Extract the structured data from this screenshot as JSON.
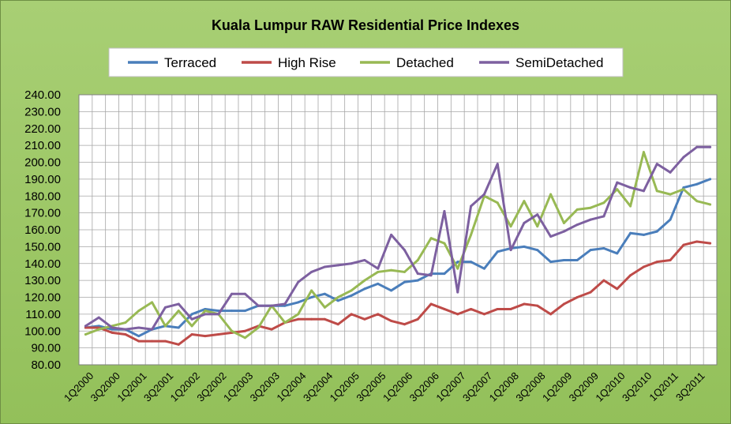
{
  "chart_data": {
    "type": "line",
    "title": "Kuala Lumpur RAW Residential Price Indexes",
    "xlabel": "",
    "ylabel": "",
    "ylim": [
      80,
      240
    ],
    "y_ticks": [
      "80.00",
      "90.00",
      "100.00",
      "110.00",
      "120.00",
      "130.00",
      "140.00",
      "150.00",
      "160.00",
      "170.00",
      "180.00",
      "190.00",
      "200.00",
      "210.00",
      "220.00",
      "230.00",
      "240.00"
    ],
    "x": [
      "1Q2000",
      "2Q2000",
      "3Q2000",
      "4Q2000",
      "1Q2001",
      "2Q2001",
      "3Q2001",
      "4Q2001",
      "1Q2002",
      "2Q2002",
      "3Q2002",
      "4Q2002",
      "1Q2003",
      "2Q2003",
      "3Q2003",
      "4Q2003",
      "1Q2004",
      "2Q2004",
      "3Q2004",
      "4Q2004",
      "1Q2005",
      "2Q2005",
      "3Q2005",
      "4Q2005",
      "1Q2006",
      "2Q2006",
      "3Q2006",
      "4Q2006",
      "1Q2007",
      "2Q2007",
      "3Q2007",
      "4Q2007",
      "1Q2008",
      "2Q2008",
      "3Q2008",
      "4Q2008",
      "1Q2009",
      "2Q2009",
      "3Q2009",
      "4Q2009",
      "1Q2010",
      "2Q2010",
      "3Q2010",
      "4Q2010",
      "1Q2011",
      "2Q2011",
      "3Q2011",
      "4Q2011"
    ],
    "x_tick_labels": [
      "1Q2000",
      "3Q2000",
      "1Q2001",
      "3Q2001",
      "1Q2002",
      "3Q2002",
      "1Q2003",
      "3Q2003",
      "1Q2004",
      "3Q2004",
      "1Q2005",
      "3Q2005",
      "1Q2006",
      "3Q2006",
      "1Q2007",
      "3Q2007",
      "1Q2008",
      "3Q2008",
      "1Q2009",
      "3Q2009",
      "1Q2010",
      "3Q2010",
      "1Q2011",
      "3Q2011"
    ],
    "legend_position": "top",
    "grid": true,
    "series": [
      {
        "name": "Terraced",
        "color": "#4A7EBB",
        "values": [
          102,
          103,
          101,
          101,
          97,
          101,
          103,
          102,
          110,
          113,
          112,
          112,
          112,
          115,
          115,
          115,
          117,
          120,
          122,
          118,
          121,
          125,
          128,
          124,
          129,
          130,
          134,
          134,
          141,
          141,
          137,
          147,
          149,
          150,
          148,
          141,
          142,
          142,
          148,
          149,
          146,
          158,
          157,
          159,
          166,
          185,
          187,
          190
        ]
      },
      {
        "name": "High Rise",
        "color": "#BE4B48",
        "values": [
          102,
          102,
          99,
          98,
          94,
          94,
          94,
          92,
          98,
          97,
          98,
          99,
          100,
          103,
          101,
          105,
          107,
          107,
          107,
          104,
          110,
          107,
          110,
          106,
          104,
          107,
          116,
          113,
          110,
          113,
          110,
          113,
          113,
          116,
          115,
          110,
          116,
          120,
          123,
          130,
          125,
          133,
          138,
          141,
          142,
          151,
          153,
          152
        ]
      },
      {
        "name": "Detached",
        "color": "#98B954",
        "values": [
          98,
          101,
          103,
          105,
          112,
          117,
          103,
          112,
          103,
          112,
          110,
          100,
          96,
          102,
          115,
          105,
          110,
          124,
          114,
          120,
          124,
          130,
          135,
          136,
          135,
          142,
          155,
          152,
          137,
          157,
          180,
          176,
          162,
          177,
          162,
          181,
          164,
          172,
          173,
          176,
          184,
          174,
          206,
          183,
          181,
          184,
          177,
          175
        ]
      },
      {
        "name": "SemiDetached",
        "color": "#7D60A0",
        "values": [
          103,
          108,
          102,
          101,
          102,
          101,
          114,
          116,
          107,
          110,
          110,
          122,
          122,
          115,
          115,
          116,
          129,
          135,
          138,
          139,
          140,
          142,
          137,
          157,
          148,
          134,
          133,
          171,
          123,
          174,
          181,
          199,
          148,
          164,
          169,
          156,
          159,
          163,
          166,
          168,
          188,
          185,
          183,
          199,
          194,
          203,
          209,
          209
        ]
      }
    ]
  }
}
